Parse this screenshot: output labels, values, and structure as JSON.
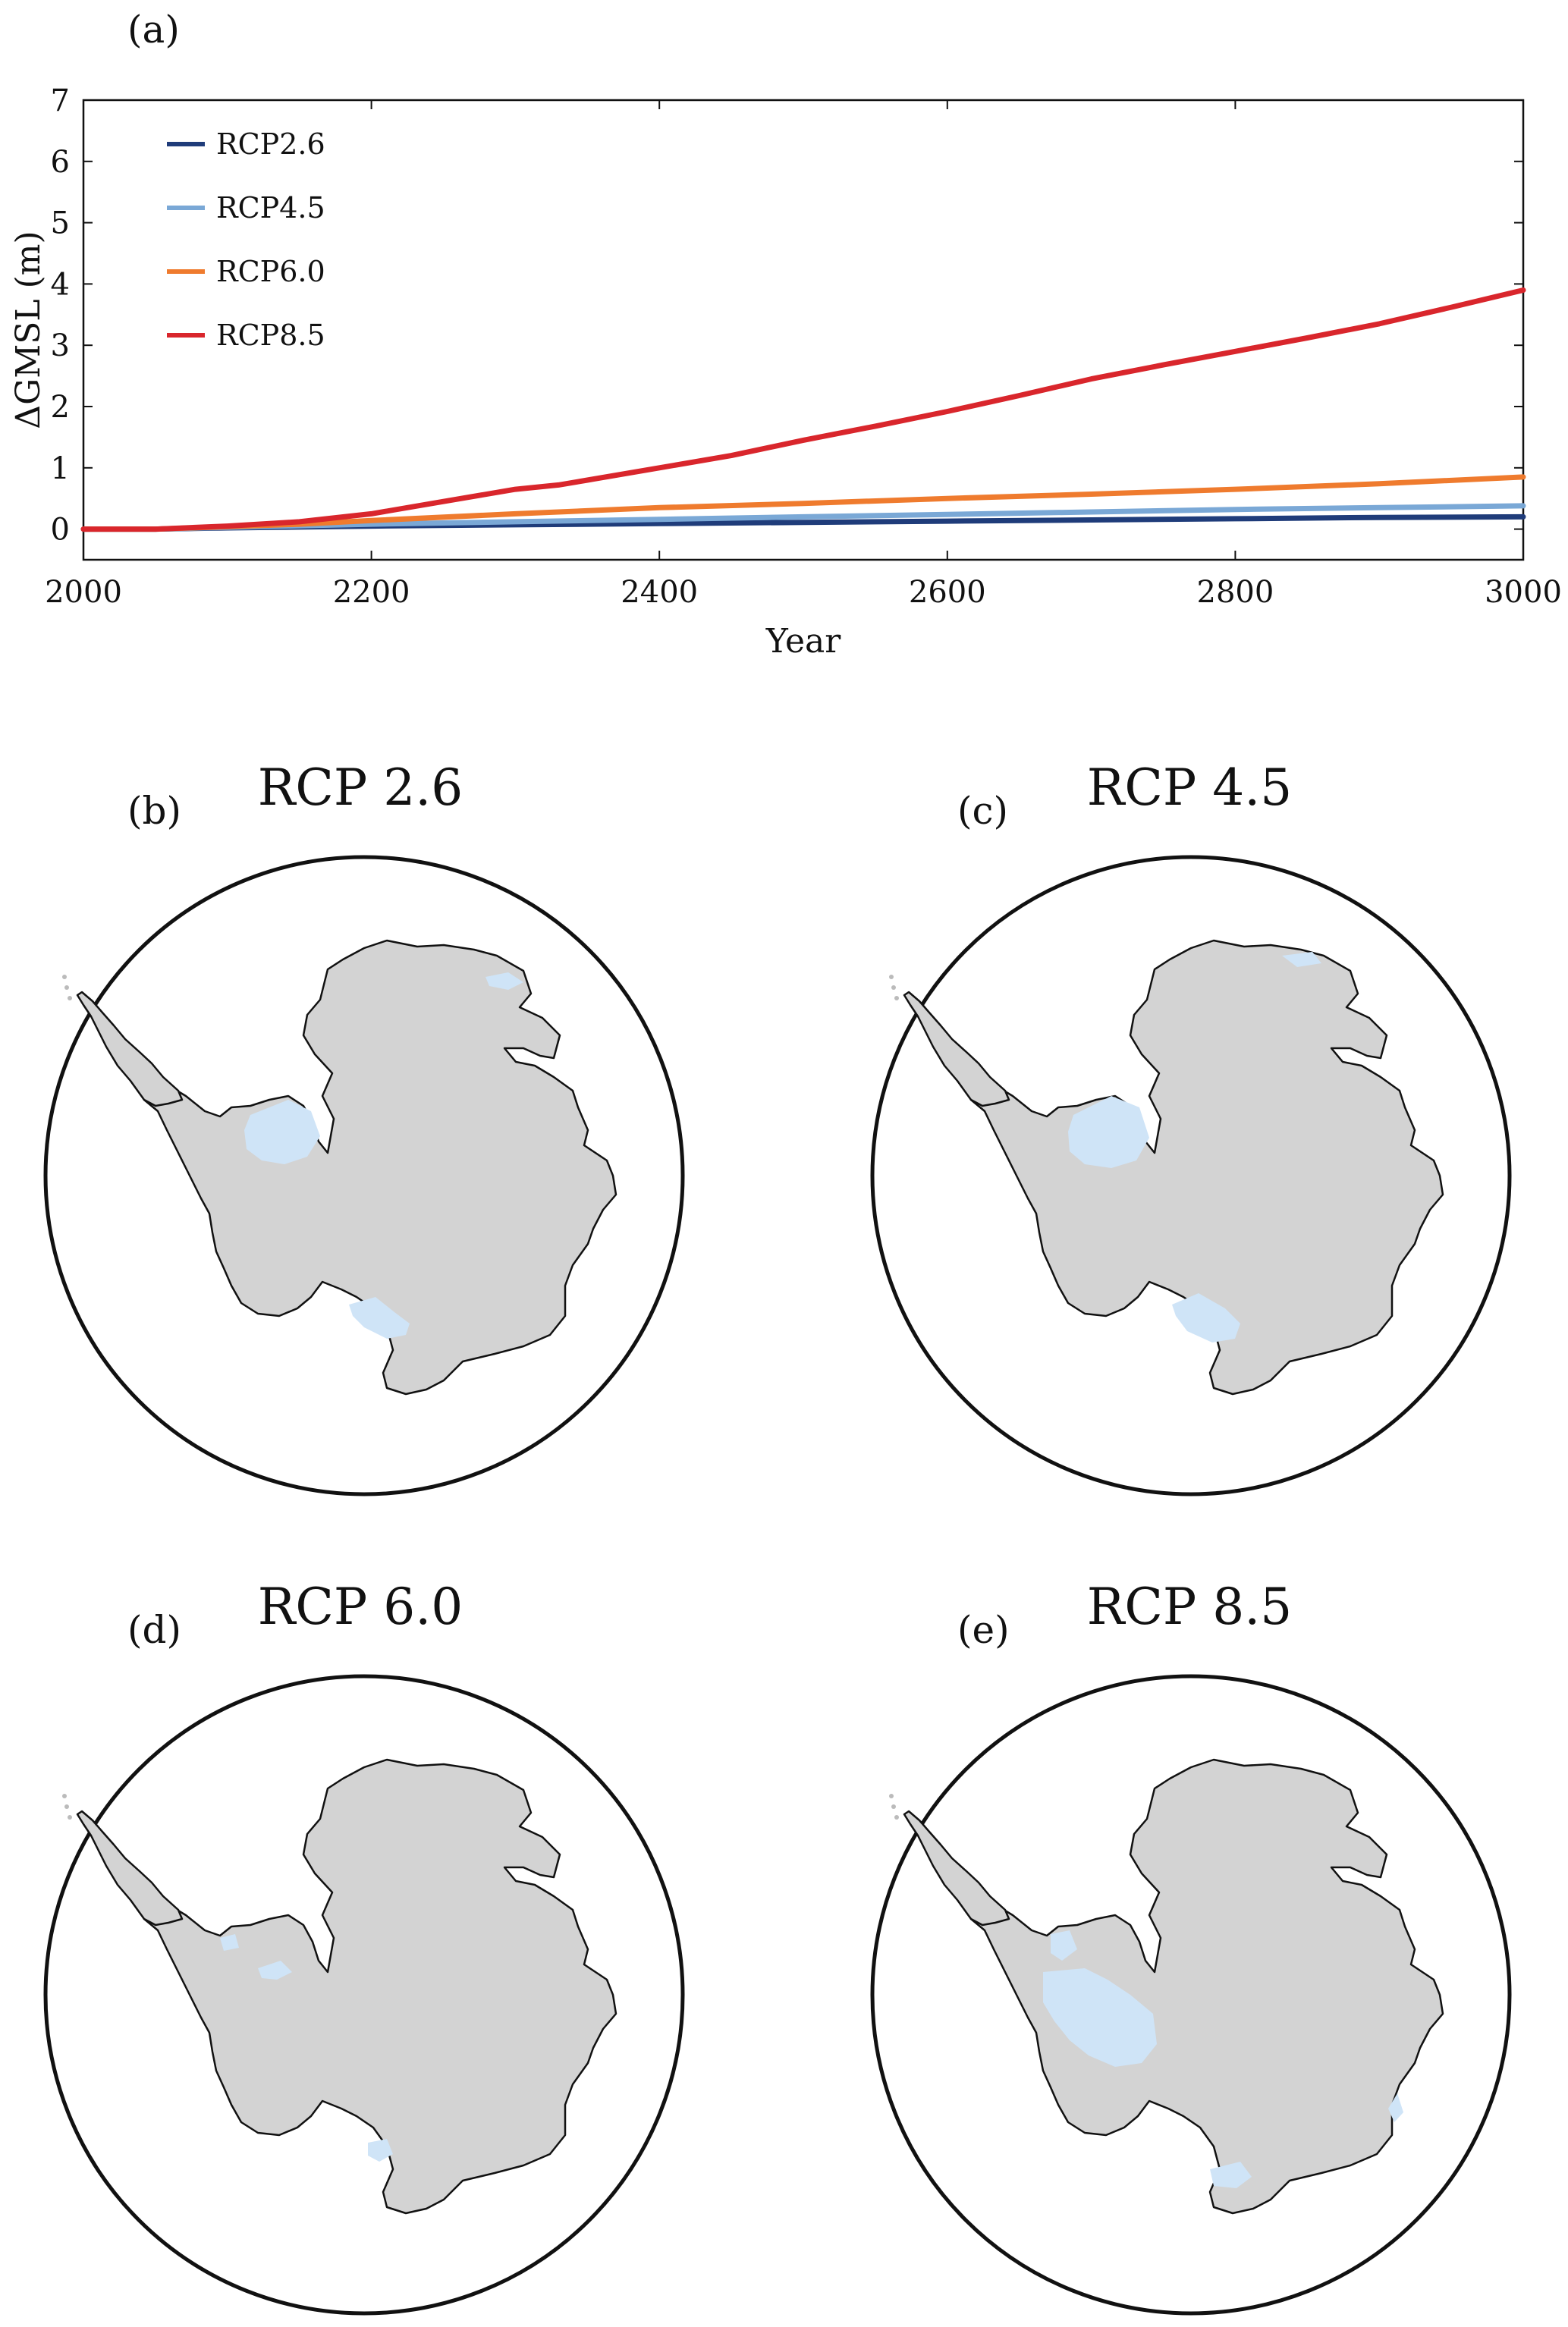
{
  "panel_a_label": "(a)",
  "chart_data": {
    "type": "line",
    "xlabel": "Year",
    "ylabel": "ΔGMSL (m)",
    "xlim": [
      2000,
      3000
    ],
    "ylim": [
      -0.5,
      7
    ],
    "xticks": [
      2000,
      2200,
      2400,
      2600,
      2800,
      3000
    ],
    "yticks": [
      0,
      1,
      2,
      3,
      4,
      5,
      6,
      7
    ],
    "grid": false,
    "legend_position": "top-left",
    "series": [
      {
        "name": "RCP2.6",
        "color": "#1f3c7a",
        "x": [
          2000,
          2050,
          2100,
          2200,
          2300,
          2400,
          2500,
          2600,
          2700,
          2800,
          2900,
          3000
        ],
        "y": [
          0,
          0,
          0.02,
          0.05,
          0.07,
          0.09,
          0.11,
          0.13,
          0.15,
          0.17,
          0.19,
          0.2
        ]
      },
      {
        "name": "RCP4.5",
        "color": "#7aa8d6",
        "x": [
          2000,
          2050,
          2100,
          2200,
          2300,
          2400,
          2500,
          2600,
          2700,
          2800,
          2900,
          3000
        ],
        "y": [
          0,
          0,
          0.03,
          0.08,
          0.12,
          0.16,
          0.2,
          0.24,
          0.28,
          0.32,
          0.35,
          0.38
        ]
      },
      {
        "name": "RCP6.0",
        "color": "#ef7b2e",
        "x": [
          2000,
          2050,
          2100,
          2150,
          2200,
          2300,
          2400,
          2500,
          2600,
          2700,
          2800,
          2900,
          3000
        ],
        "y": [
          0,
          0,
          0.04,
          0.08,
          0.14,
          0.25,
          0.35,
          0.42,
          0.5,
          0.57,
          0.65,
          0.74,
          0.85
        ]
      },
      {
        "name": "RCP8.5",
        "color": "#d9262c",
        "x": [
          2000,
          2050,
          2100,
          2150,
          2200,
          2250,
          2300,
          2330,
          2350,
          2400,
          2450,
          2500,
          2550,
          2600,
          2650,
          2700,
          2750,
          2800,
          2850,
          2900,
          2950,
          3000
        ],
        "y": [
          0,
          0,
          0.05,
          0.12,
          0.25,
          0.45,
          0.65,
          0.72,
          0.8,
          1.0,
          1.2,
          1.45,
          1.68,
          1.92,
          2.18,
          2.45,
          2.68,
          2.9,
          3.12,
          3.35,
          3.62,
          3.9
        ]
      }
    ]
  },
  "maps": [
    {
      "panel": "(b)",
      "title": "RCP 2.6"
    },
    {
      "panel": "(c)",
      "title": "RCP 4.5"
    },
    {
      "panel": "(d)",
      "title": "RCP 6.0"
    },
    {
      "panel": "(e)",
      "title": "RCP 8.5"
    }
  ],
  "colors": {
    "land": "#d3d3d3",
    "shelf": "#cfe4f7",
    "coast": "#111111"
  }
}
